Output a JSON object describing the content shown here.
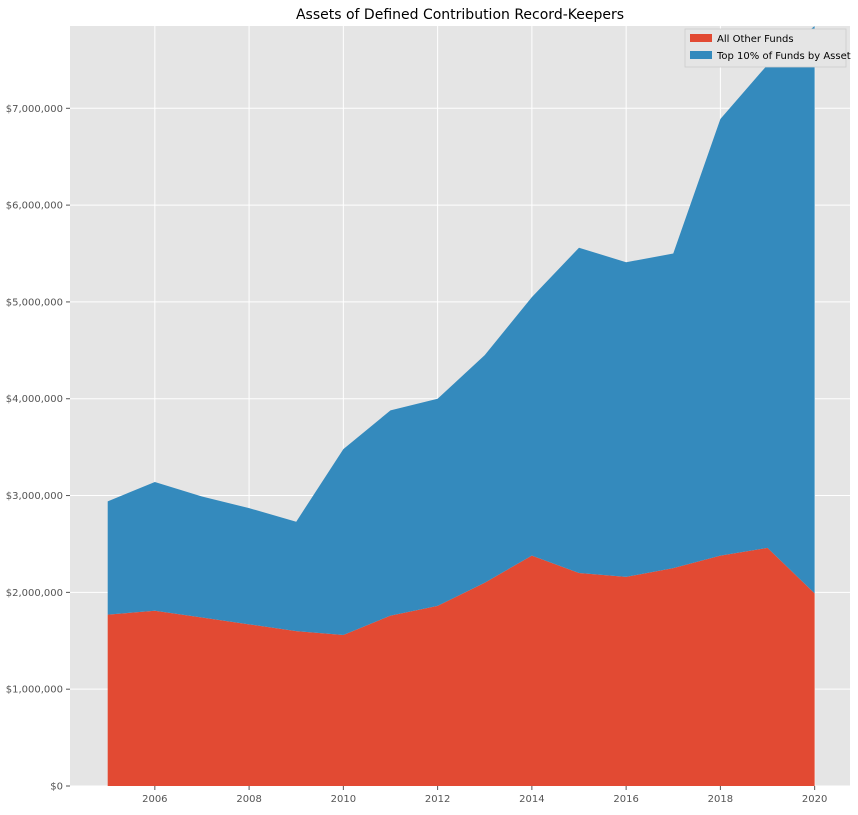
{
  "chart_data": {
    "type": "area",
    "stacked": true,
    "title": "Assets of Defined Contribution Record-Keepers",
    "xlabel": "",
    "ylabel": "",
    "x": [
      2005,
      2006,
      2007,
      2008,
      2009,
      2010,
      2011,
      2012,
      2013,
      2014,
      2015,
      2016,
      2017,
      2018,
      2019,
      2020
    ],
    "xlim": [
      2004.2,
      2020.75
    ],
    "ylim": [
      0,
      7850000
    ],
    "x_ticks": [
      2006,
      2008,
      2010,
      2012,
      2014,
      2016,
      2018,
      2020
    ],
    "x_tick_labels": [
      "2006",
      "2008",
      "2010",
      "2012",
      "2014",
      "2016",
      "2018",
      "2020"
    ],
    "y_ticks": [
      0,
      1000000,
      2000000,
      3000000,
      4000000,
      5000000,
      6000000,
      7000000
    ],
    "y_tick_labels": [
      "$0",
      "$1,000,000",
      "$2,000,000",
      "$3,000,000",
      "$4,000,000",
      "$5,000,000",
      "$6,000,000",
      "$7,000,000"
    ],
    "series": [
      {
        "name": "All Other Funds",
        "color": "#E24A33",
        "values": [
          1770000,
          1810000,
          1740000,
          1670000,
          1600000,
          1560000,
          1760000,
          1860000,
          2100000,
          2380000,
          2200000,
          2160000,
          2250000,
          2380000,
          2460000,
          1990000
        ]
      },
      {
        "name": "Top 10% of Funds by Asset",
        "color": "#348ABD",
        "values": [
          1170000,
          1330000,
          1250000,
          1200000,
          1130000,
          1920000,
          2120000,
          2140000,
          2350000,
          2670000,
          3360000,
          3250000,
          3250000,
          4510000,
          4990000,
          5860000
        ]
      }
    ],
    "legend": {
      "placement": "top-right",
      "items": [
        "All Other Funds",
        "Top 10% of Funds by Asset"
      ]
    },
    "grid": true,
    "style": {
      "background": "#E5E5E5",
      "grid_color": "#FFFFFF"
    }
  }
}
